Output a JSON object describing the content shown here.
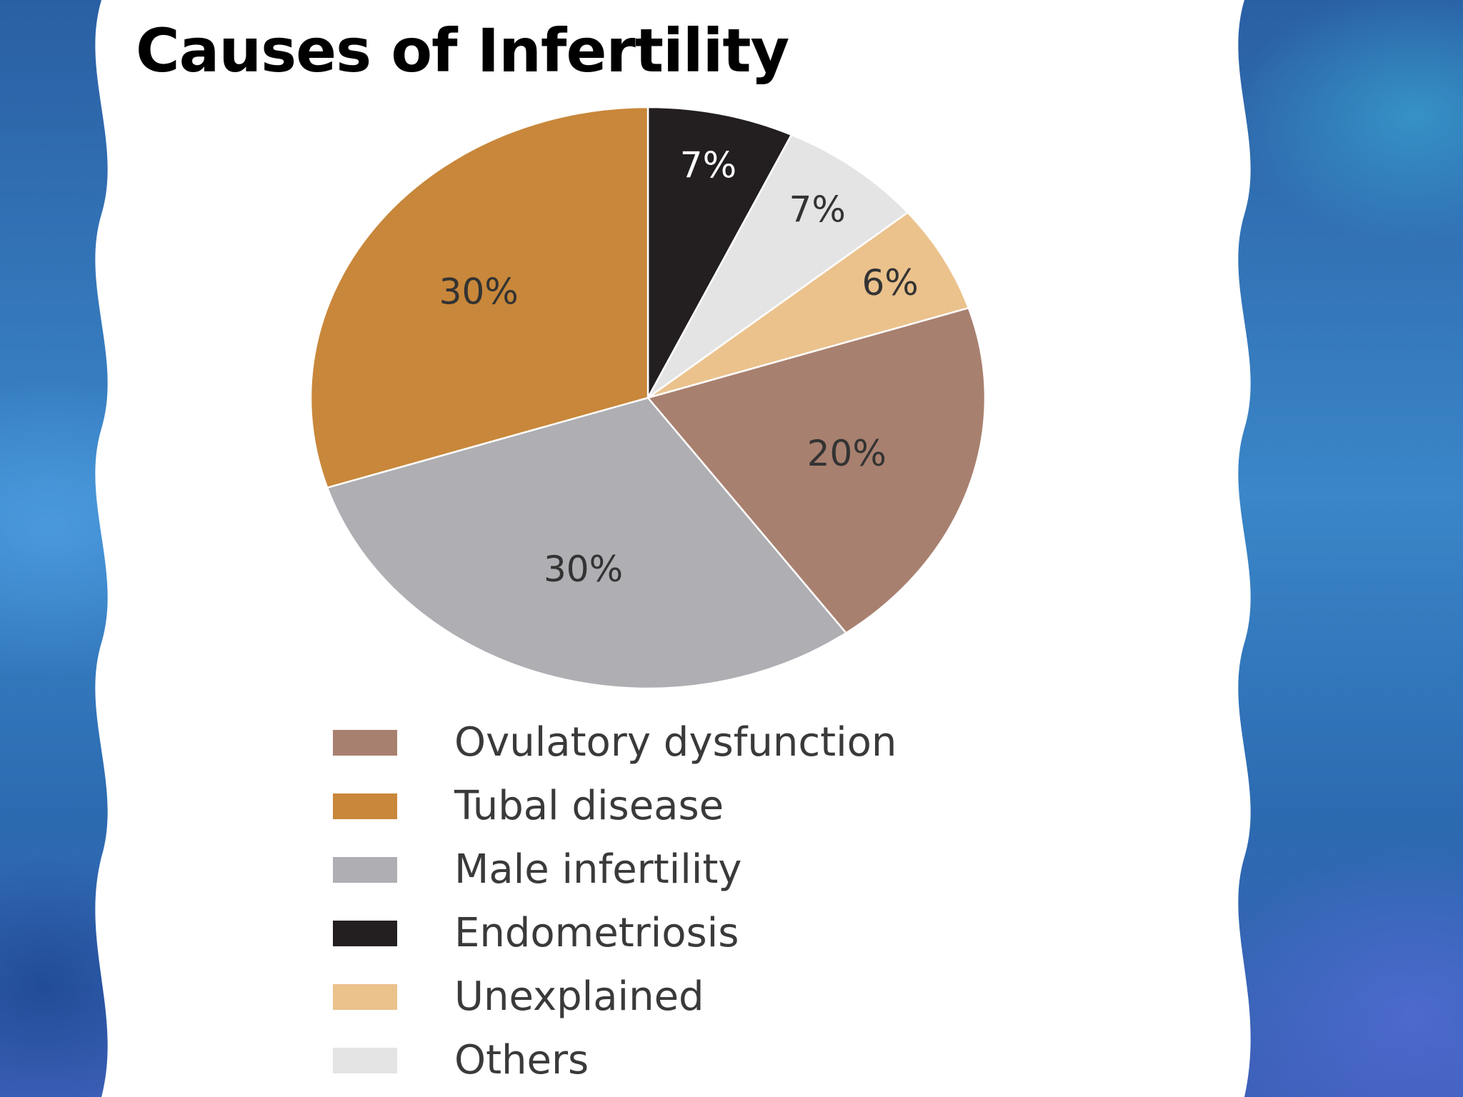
{
  "chart_data": {
    "type": "pie",
    "title": "Causes of Infertility",
    "slices": [
      {
        "label": "Endometriosis",
        "value": 7,
        "value_label": "7%",
        "color": "#231f20",
        "label_color": "#ffffff"
      },
      {
        "label": "Others",
        "value": 7,
        "value_label": "7%",
        "color": "#e4e4e5",
        "label_color": "#333333"
      },
      {
        "label": "Unexplained",
        "value": 6,
        "value_label": "6%",
        "color": "#ebc28c",
        "label_color": "#333333"
      },
      {
        "label": "Ovulatory dysfunction",
        "value": 20,
        "value_label": "20%",
        "color": "#a8806f",
        "label_color": "#333333"
      },
      {
        "label": "Male infertility",
        "value": 30,
        "value_label": "30%",
        "color": "#aeaeb3",
        "label_color": "#333333"
      },
      {
        "label": "Tubal disease",
        "value": 30,
        "value_label": "30%",
        "color": "#c8873a",
        "label_color": "#333333"
      }
    ],
    "legend": [
      {
        "label": "Ovulatory dysfunction",
        "color": "#a8806f"
      },
      {
        "label": "Tubal disease",
        "color": "#c8873a"
      },
      {
        "label": "Male infertility",
        "color": "#aeaeb3"
      },
      {
        "label": "Endometriosis",
        "color": "#231f20"
      },
      {
        "label": "Unexplained",
        "color": "#ebc28c"
      },
      {
        "label": "Others",
        "color": "#e4e4e5"
      }
    ],
    "legend_placement": "bottom",
    "start": "12 o'clock",
    "direction": "clockwise"
  }
}
